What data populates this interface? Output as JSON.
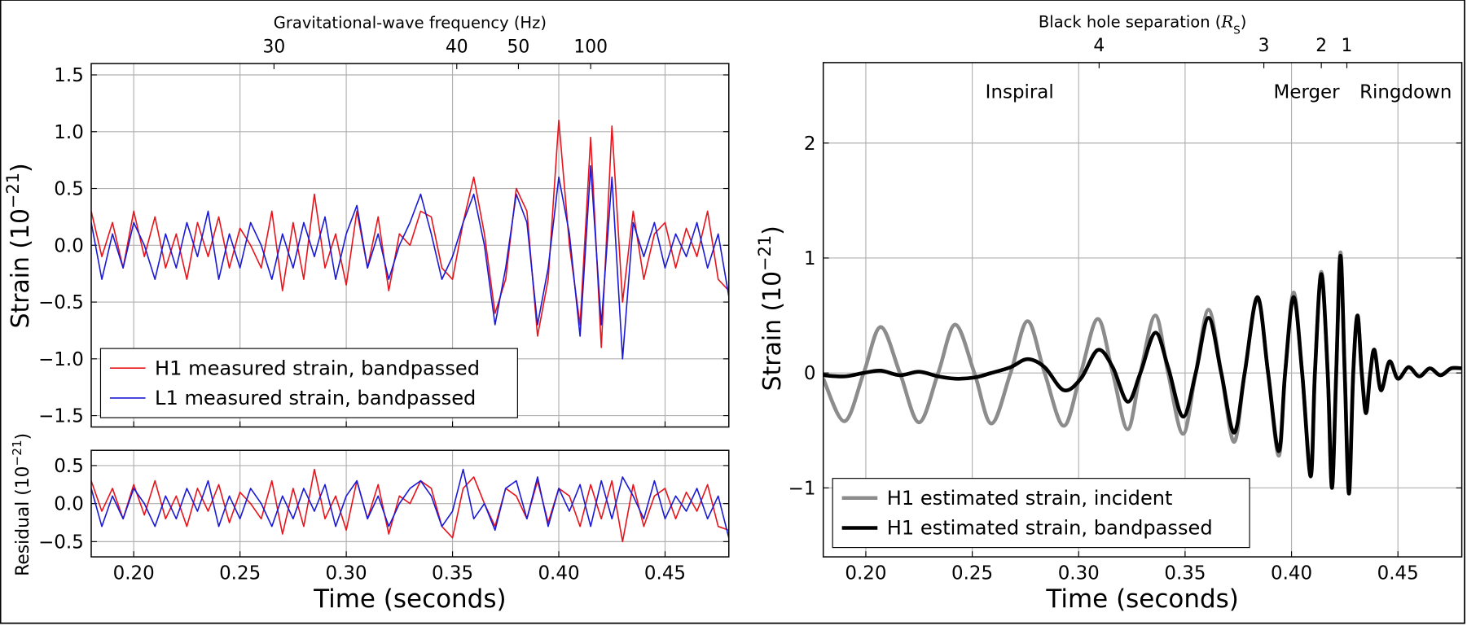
{
  "chart_data": [
    {
      "type": "line",
      "x2_label": "Gravitational-wave frequency (Hz)",
      "x2ticks": [
        {
          "value": 0.266,
          "label": "30"
        },
        {
          "value": 0.352,
          "label": "40"
        },
        {
          "value": 0.381,
          "label": "50"
        },
        {
          "value": 0.415,
          "label": "100"
        }
      ],
      "y_label": [
        "Strain (10",
        "−21",
        ")"
      ],
      "xlim": [
        0.18,
        0.48
      ],
      "xticks": [
        0.2,
        0.25,
        0.3,
        0.35,
        0.4,
        0.45
      ],
      "xtick_labels": false,
      "ylim": [
        -1.6,
        1.6
      ],
      "yticks": [
        {
          "value": -1.5,
          "label": "−1.5"
        },
        {
          "value": -1,
          "label": "−1.0"
        },
        {
          "value": -0.5,
          "label": "−0.5"
        },
        {
          "value": 0,
          "label": "0.0"
        },
        0.5,
        {
          "value": 1,
          "label": "1.0"
        },
        1.5
      ],
      "grid": true,
      "legend": "lower left",
      "x": [
        0.18,
        0.185,
        0.19,
        0.195,
        0.2,
        0.205,
        0.21,
        0.215,
        0.22,
        0.225,
        0.23,
        0.235,
        0.24,
        0.245,
        0.25,
        0.255,
        0.26,
        0.265,
        0.27,
        0.275,
        0.28,
        0.285,
        0.29,
        0.295,
        0.3,
        0.305,
        0.31,
        0.315,
        0.32,
        0.325,
        0.33,
        0.335,
        0.34,
        0.345,
        0.35,
        0.355,
        0.36,
        0.365,
        0.37,
        0.375,
        0.38,
        0.385,
        0.39,
        0.395,
        0.4,
        0.405,
        0.41,
        0.415,
        0.42,
        0.425,
        0.43,
        0.435,
        0.44,
        0.445,
        0.45,
        0.455,
        0.46,
        0.465,
        0.47,
        0.475,
        0.48
      ],
      "series": [
        {
          "name": "H1 measured strain, bandpassed",
          "color": "#e8141c",
          "values": [
            0.3,
            -0.1,
            0.2,
            -0.2,
            0.3,
            -0.1,
            0.25,
            -0.2,
            0.1,
            -0.3,
            0.2,
            -0.1,
            0.25,
            -0.2,
            0.15,
            0.0,
            -0.2,
            0.3,
            -0.4,
            0.2,
            -0.3,
            0.45,
            -0.2,
            0.1,
            -0.35,
            0.3,
            -0.2,
            0.25,
            -0.4,
            0.1,
            0.0,
            0.3,
            0.25,
            -0.2,
            -0.3,
            0.2,
            0.6,
            0.1,
            -0.6,
            -0.3,
            0.5,
            0.3,
            -0.8,
            -0.3,
            1.1,
            0.0,
            -0.7,
            0.95,
            -0.9,
            1.05,
            -0.5,
            0.3,
            -0.3,
            0.1,
            0.2,
            -0.2,
            0.15,
            -0.1,
            0.3,
            -0.3,
            -0.4
          ]
        },
        {
          "name": "L1 measured strain, bandpassed",
          "color": "#1a1ad6",
          "values": [
            0.2,
            -0.3,
            0.1,
            -0.2,
            0.2,
            0.0,
            -0.3,
            0.1,
            -0.2,
            0.2,
            -0.1,
            0.3,
            -0.3,
            0.1,
            -0.2,
            0.2,
            0.0,
            -0.3,
            0.1,
            -0.2,
            0.2,
            -0.1,
            0.25,
            -0.3,
            0.1,
            0.35,
            -0.2,
            0.1,
            -0.3,
            0.0,
            0.2,
            0.45,
            0.1,
            -0.3,
            -0.1,
            0.2,
            0.45,
            0.0,
            -0.7,
            -0.2,
            0.45,
            0.2,
            -0.7,
            -0.2,
            0.6,
            0.1,
            -0.8,
            0.7,
            -0.7,
            0.6,
            -1.0,
            0.2,
            -0.1,
            0.2,
            -0.2,
            0.1,
            -0.1,
            0.2,
            -0.2,
            0.1,
            -0.45
          ]
        }
      ]
    },
    {
      "type": "line",
      "x_label": "Time (seconds)",
      "y_label": [
        "Residual (10",
        "−21",
        ")"
      ],
      "xlim": [
        0.18,
        0.48
      ],
      "xticks": [
        {
          "value": 0.2,
          "label": "0.20"
        },
        {
          "value": 0.25,
          "label": "0.25"
        },
        {
          "value": 0.3,
          "label": "0.30"
        },
        {
          "value": 0.35,
          "label": "0.35"
        },
        {
          "value": 0.4,
          "label": "0.40"
        },
        {
          "value": 0.45,
          "label": "0.45"
        }
      ],
      "ylim": [
        -0.7,
        0.7
      ],
      "yticks": [
        {
          "value": -0.5,
          "label": "−0.5"
        },
        {
          "value": 0,
          "label": "0.0"
        },
        0.5
      ],
      "grid": true,
      "x": [
        0.18,
        0.185,
        0.19,
        0.195,
        0.2,
        0.205,
        0.21,
        0.215,
        0.22,
        0.225,
        0.23,
        0.235,
        0.24,
        0.245,
        0.25,
        0.255,
        0.26,
        0.265,
        0.27,
        0.275,
        0.28,
        0.285,
        0.29,
        0.295,
        0.3,
        0.305,
        0.31,
        0.315,
        0.32,
        0.325,
        0.33,
        0.335,
        0.34,
        0.345,
        0.35,
        0.355,
        0.36,
        0.365,
        0.37,
        0.375,
        0.38,
        0.385,
        0.39,
        0.395,
        0.4,
        0.405,
        0.41,
        0.415,
        0.42,
        0.425,
        0.43,
        0.435,
        0.44,
        0.445,
        0.45,
        0.455,
        0.46,
        0.465,
        0.47,
        0.475,
        0.48
      ],
      "series": [
        {
          "color": "#e8141c",
          "values": [
            0.3,
            -0.1,
            0.2,
            -0.2,
            0.25,
            -0.15,
            0.3,
            -0.2,
            0.1,
            -0.3,
            0.2,
            -0.1,
            0.25,
            -0.25,
            0.15,
            0.0,
            -0.2,
            0.3,
            -0.4,
            0.2,
            -0.3,
            0.45,
            -0.2,
            0.1,
            -0.35,
            0.3,
            -0.2,
            0.25,
            -0.4,
            0.1,
            0.0,
            0.3,
            0.2,
            -0.3,
            -0.45,
            0.2,
            0.35,
            0.0,
            -0.3,
            0.2,
            0.1,
            -0.2,
            0.3,
            -0.25,
            0.2,
            0.1,
            -0.3,
            0.25,
            -0.2,
            0.3,
            -0.5,
            0.25,
            -0.3,
            0.1,
            0.2,
            -0.2,
            0.15,
            -0.1,
            0.25,
            -0.3,
            -0.35
          ]
        },
        {
          "color": "#1a1ad6",
          "values": [
            0.2,
            -0.3,
            0.1,
            -0.2,
            0.2,
            0.0,
            -0.3,
            0.1,
            -0.2,
            0.2,
            -0.1,
            0.3,
            -0.3,
            0.1,
            -0.2,
            0.2,
            0.0,
            -0.3,
            0.1,
            -0.2,
            0.2,
            -0.1,
            0.25,
            -0.3,
            0.1,
            0.3,
            -0.2,
            0.1,
            -0.3,
            0.0,
            0.2,
            0.3,
            0.1,
            -0.3,
            -0.1,
            0.45,
            -0.2,
            0.0,
            -0.35,
            0.2,
            0.3,
            -0.2,
            0.35,
            -0.3,
            0.2,
            -0.1,
            0.25,
            -0.3,
            0.3,
            -0.2,
            0.35,
            0.1,
            -0.2,
            0.3,
            -0.2,
            0.1,
            -0.1,
            0.2,
            -0.2,
            0.1,
            -0.45
          ]
        }
      ]
    },
    {
      "type": "line",
      "x_label": "Time (seconds)",
      "x2_label": [
        "Black hole separation (",
        "R",
        "S",
        ")"
      ],
      "x2ticks": [
        {
          "value": 0.3096,
          "label": "4"
        },
        {
          "value": 0.387,
          "label": "3"
        },
        {
          "value": 0.414,
          "label": "2"
        },
        {
          "value": 0.426,
          "label": "1"
        }
      ],
      "y_label": [
        "Strain (10",
        "−21",
        ")"
      ],
      "annotations": [
        "Inspiral",
        "Merger",
        "Ringdown"
      ],
      "xlim": [
        0.18,
        0.48
      ],
      "xticks": [
        {
          "value": 0.2,
          "label": "0.20"
        },
        {
          "value": 0.25,
          "label": "0.25"
        },
        {
          "value": 0.3,
          "label": "0.30"
        },
        {
          "value": 0.35,
          "label": "0.35"
        },
        {
          "value": 0.4,
          "label": "0.40"
        },
        {
          "value": 0.45,
          "label": "0.45"
        }
      ],
      "ylim": [
        -1.6,
        2.7
      ],
      "yticks": [
        {
          "value": -1,
          "label": "−1"
        },
        0,
        1,
        2
      ],
      "grid": true,
      "legend": "lower left",
      "x": [
        0.18,
        0.19,
        0.199,
        0.207,
        0.216,
        0.225,
        0.234,
        0.242,
        0.251,
        0.259,
        0.268,
        0.276,
        0.284,
        0.293,
        0.301,
        0.309,
        0.316,
        0.323,
        0.329,
        0.336,
        0.342,
        0.349,
        0.355,
        0.361,
        0.367,
        0.373,
        0.378,
        0.384,
        0.389,
        0.394,
        0.397,
        0.401,
        0.405,
        0.409,
        0.411,
        0.414,
        0.417,
        0.419,
        0.421,
        0.423,
        0.425,
        0.427,
        0.429,
        0.431,
        0.433,
        0.435,
        0.437,
        0.439,
        0.442,
        0.446,
        0.45,
        0.455,
        0.46,
        0.465,
        0.47,
        0.475,
        0.48
      ],
      "series": [
        {
          "name": "H1 estimated strain, incident",
          "color": "#8c8c8c",
          "values": [
            -0.05,
            -0.42,
            0,
            0.4,
            0,
            -0.43,
            0,
            0.42,
            0,
            -0.44,
            0,
            0.45,
            0,
            -0.46,
            0,
            0.47,
            0,
            -0.49,
            0,
            0.5,
            0,
            -0.53,
            0,
            0.55,
            0,
            -0.6,
            0,
            0.65,
            0,
            -0.72,
            0,
            0.7,
            0,
            -0.85,
            0,
            0.88,
            0,
            -0.98,
            0,
            1.05,
            0,
            -0.95,
            0,
            0.5,
            0,
            -0.3,
            0,
            0.2,
            -0.15,
            0.1,
            -0.05,
            0.05,
            -0.03,
            0.04,
            -0.02,
            0.04,
            0.04
          ]
        },
        {
          "name": "H1 estimated strain, bandpassed",
          "color": "#000000",
          "values": [
            -0.02,
            -0.03,
            0,
            0.02,
            -0.02,
            0.01,
            -0.03,
            -0.05,
            -0.04,
            0,
            0.05,
            0.12,
            0.05,
            -0.15,
            -0.05,
            0.2,
            0.05,
            -0.25,
            0,
            0.35,
            0.05,
            -0.38,
            0,
            0.48,
            0,
            -0.52,
            0,
            0.66,
            0,
            -0.68,
            0,
            0.66,
            0,
            -0.9,
            0,
            0.86,
            0,
            -1.0,
            0,
            1.02,
            0,
            -1.05,
            0,
            0.5,
            0,
            -0.35,
            0,
            0.2,
            -0.15,
            0.1,
            -0.05,
            0.05,
            -0.03,
            0.04,
            -0.02,
            0.04,
            0.04
          ]
        }
      ]
    }
  ]
}
